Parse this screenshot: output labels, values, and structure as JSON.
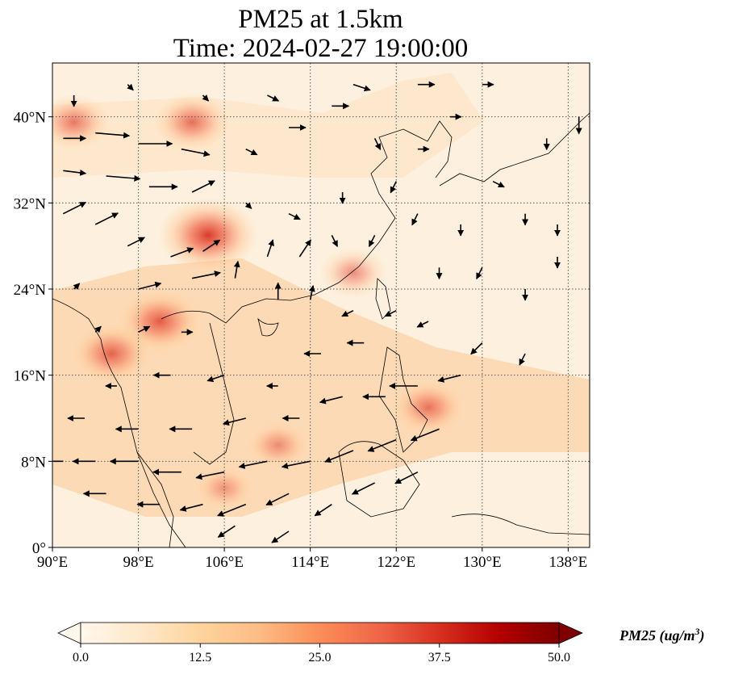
{
  "title": {
    "line1": "PM25 at 1.5km",
    "line2": "Time: 2024-02-27 19:00:00"
  },
  "chart_data": {
    "type": "heatmap",
    "subtype": "map-with-wind-vectors",
    "variable": "PM25",
    "level": "1.5km",
    "time": "2024-02-27 19:00:00",
    "extent": {
      "lon": [
        90,
        140
      ],
      "lat": [
        0,
        45
      ]
    },
    "lon_ticks": [
      "90°E",
      "98°E",
      "106°E",
      "114°E",
      "122°E",
      "130°E",
      "138°E"
    ],
    "lon_tick_values": [
      90,
      98,
      106,
      114,
      122,
      130,
      138
    ],
    "lat_ticks": [
      "0°",
      "8°N",
      "16°N",
      "24°N",
      "32°N",
      "40°N"
    ],
    "lat_tick_values": [
      0,
      8,
      16,
      24,
      32,
      40
    ],
    "gridlines": true,
    "colorbar": {
      "label": "PM25 (ug/m",
      "label_sup": "3",
      "label_end": ")",
      "ticks": [
        "0.0",
        "12.5",
        "25.0",
        "37.5",
        "50.0"
      ],
      "tick_values": [
        0,
        12.5,
        25,
        37.5,
        50
      ],
      "range": [
        0,
        50
      ],
      "extend": "both",
      "colormap": "OrRd",
      "colors": [
        "#fff7ec",
        "#fee8c8",
        "#fdd49e",
        "#fdbb84",
        "#fc8d59",
        "#ef6548",
        "#d7301f",
        "#b30000",
        "#7f0000"
      ]
    },
    "hotspots": [
      {
        "lon": 104.5,
        "lat": 29,
        "value": 40
      },
      {
        "lon": 100,
        "lat": 21,
        "value": 32
      },
      {
        "lon": 95.5,
        "lat": 18,
        "value": 30
      },
      {
        "lon": 103,
        "lat": 39.5,
        "value": 28
      },
      {
        "lon": 92,
        "lat": 39.5,
        "value": 26
      },
      {
        "lon": 125,
        "lat": 13,
        "value": 26
      },
      {
        "lon": 118,
        "lat": 25.5,
        "value": 22
      },
      {
        "lon": 111,
        "lat": 9.5,
        "value": 20
      },
      {
        "lon": 106,
        "lat": 5.5,
        "value": 18
      }
    ],
    "wind_vectors": [
      {
        "lon": 91,
        "lat": 38,
        "u": 4,
        "v": 0
      },
      {
        "lon": 94,
        "lat": 38.5,
        "u": 6,
        "v": -0.5
      },
      {
        "lon": 98,
        "lat": 37.5,
        "u": 6,
        "v": 0
      },
      {
        "lon": 102,
        "lat": 37,
        "u": 5,
        "v": -1
      },
      {
        "lon": 91,
        "lat": 35,
        "u": 4,
        "v": -0.5
      },
      {
        "lon": 95,
        "lat": 34.5,
        "u": 6,
        "v": -0.5
      },
      {
        "lon": 99,
        "lat": 33.5,
        "u": 5,
        "v": 0
      },
      {
        "lon": 103,
        "lat": 33,
        "u": 4,
        "v": 2
      },
      {
        "lon": 91,
        "lat": 31,
        "u": 4,
        "v": 2
      },
      {
        "lon": 94,
        "lat": 30,
        "u": 4,
        "v": 2
      },
      {
        "lon": 97,
        "lat": 28,
        "u": 3,
        "v": 1.5
      },
      {
        "lon": 101,
        "lat": 27,
        "u": 4,
        "v": 1.5
      },
      {
        "lon": 104,
        "lat": 27.5,
        "u": 3,
        "v": 2
      },
      {
        "lon": 103,
        "lat": 25,
        "u": 5,
        "v": 1
      },
      {
        "lon": 98,
        "lat": 24,
        "u": 4,
        "v": 1
      },
      {
        "lon": 107,
        "lat": 25,
        "u": 0.5,
        "v": 3
      },
      {
        "lon": 110,
        "lat": 27,
        "u": 1,
        "v": 3
      },
      {
        "lon": 113,
        "lat": 27,
        "u": 2,
        "v": 3
      },
      {
        "lon": 111,
        "lat": 23,
        "u": 0,
        "v": 3
      },
      {
        "lon": 114,
        "lat": 23,
        "u": 0.5,
        "v": 2.5
      },
      {
        "lon": 108,
        "lat": 37,
        "u": 2,
        "v": -1
      },
      {
        "lon": 112,
        "lat": 39,
        "u": 3,
        "v": 0
      },
      {
        "lon": 116,
        "lat": 41,
        "u": 3,
        "v": 0
      },
      {
        "lon": 120,
        "lat": 38,
        "u": 1,
        "v": -2
      },
      {
        "lon": 122,
        "lat": 34,
        "u": -1,
        "v": -2
      },
      {
        "lon": 117,
        "lat": 33,
        "u": 0,
        "v": -2
      },
      {
        "lon": 124,
        "lat": 37,
        "u": 2,
        "v": 0
      },
      {
        "lon": 127,
        "lat": 40,
        "u": 2,
        "v": 0
      },
      {
        "lon": 131,
        "lat": 34,
        "u": 2,
        "v": -1
      },
      {
        "lon": 134,
        "lat": 31,
        "u": 0,
        "v": -2
      },
      {
        "lon": 137,
        "lat": 30,
        "u": 0,
        "v": -2
      },
      {
        "lon": 139,
        "lat": 40,
        "u": 0,
        "v": -3
      },
      {
        "lon": 137,
        "lat": 27,
        "u": 0,
        "v": -2
      },
      {
        "lon": 134,
        "lat": 24,
        "u": 0,
        "v": -2
      },
      {
        "lon": 130,
        "lat": 26,
        "u": -1,
        "v": -2
      },
      {
        "lon": 126,
        "lat": 26,
        "u": 0,
        "v": -2
      },
      {
        "lon": 125,
        "lat": 21,
        "u": -2,
        "v": -1
      },
      {
        "lon": 130,
        "lat": 19,
        "u": -2,
        "v": -2
      },
      {
        "lon": 134,
        "lat": 18,
        "u": -1,
        "v": -2
      },
      {
        "lon": 128,
        "lat": 16,
        "u": -4,
        "v": -1
      },
      {
        "lon": 124,
        "lat": 15,
        "u": -5,
        "v": 0
      },
      {
        "lon": 121,
        "lat": 14,
        "u": -4,
        "v": 0
      },
      {
        "lon": 117,
        "lat": 14,
        "u": -4,
        "v": -1
      },
      {
        "lon": 126,
        "lat": 11,
        "u": -5,
        "v": -2
      },
      {
        "lon": 122,
        "lat": 10,
        "u": -5,
        "v": -2
      },
      {
        "lon": 118,
        "lat": 9,
        "u": -5,
        "v": -2
      },
      {
        "lon": 114,
        "lat": 8,
        "u": -5,
        "v": -1
      },
      {
        "lon": 110,
        "lat": 8,
        "u": -5,
        "v": -1
      },
      {
        "lon": 106,
        "lat": 7,
        "u": -5,
        "v": -1
      },
      {
        "lon": 102,
        "lat": 7,
        "u": -5,
        "v": 0
      },
      {
        "lon": 98,
        "lat": 8,
        "u": -5,
        "v": 0
      },
      {
        "lon": 94,
        "lat": 8,
        "u": -4,
        "v": 0
      },
      {
        "lon": 91,
        "lat": 8,
        "u": -3,
        "v": 0
      },
      {
        "lon": 95,
        "lat": 5,
        "u": -4,
        "v": 0
      },
      {
        "lon": 100,
        "lat": 4,
        "u": -4,
        "v": 0
      },
      {
        "lon": 104,
        "lat": 4,
        "u": -4,
        "v": -1
      },
      {
        "lon": 108,
        "lat": 4,
        "u": -5,
        "v": -2
      },
      {
        "lon": 112,
        "lat": 5,
        "u": -4,
        "v": -2
      },
      {
        "lon": 116,
        "lat": 4,
        "u": -3,
        "v": -2
      },
      {
        "lon": 120,
        "lat": 6,
        "u": -4,
        "v": -2
      },
      {
        "lon": 124,
        "lat": 7,
        "u": -4,
        "v": -2
      },
      {
        "lon": 107,
        "lat": 2,
        "u": -3,
        "v": -2
      },
      {
        "lon": 112,
        "lat": 1.5,
        "u": -3,
        "v": -2
      },
      {
        "lon": 98,
        "lat": 11,
        "u": -4,
        "v": 0
      },
      {
        "lon": 103,
        "lat": 11,
        "u": -4,
        "v": 0
      },
      {
        "lon": 108,
        "lat": 12,
        "u": -4,
        "v": -1
      },
      {
        "lon": 113,
        "lat": 12,
        "u": -3,
        "v": 0
      },
      {
        "lon": 93,
        "lat": 12,
        "u": -3,
        "v": 0
      },
      {
        "lon": 96,
        "lat": 15,
        "u": -2,
        "v": 0
      },
      {
        "lon": 101,
        "lat": 16,
        "u": -3,
        "v": 0
      },
      {
        "lon": 106,
        "lat": 16,
        "u": -3,
        "v": -1
      },
      {
        "lon": 111,
        "lat": 15,
        "u": -2,
        "v": 0
      },
      {
        "lon": 115,
        "lat": 18,
        "u": -3,
        "v": 0
      },
      {
        "lon": 119,
        "lat": 19,
        "u": -3,
        "v": 0
      },
      {
        "lon": 122,
        "lat": 22,
        "u": -2,
        "v": -1
      },
      {
        "lon": 118,
        "lat": 22,
        "u": -2,
        "v": -1
      },
      {
        "lon": 94,
        "lat": 20,
        "u": 1,
        "v": 1
      },
      {
        "lon": 98,
        "lat": 20,
        "u": 2,
        "v": 1
      },
      {
        "lon": 102,
        "lat": 20,
        "u": 2,
        "v": 0
      },
      {
        "lon": 92,
        "lat": 24,
        "u": 1,
        "v": 1
      },
      {
        "lon": 108,
        "lat": 32,
        "u": 1,
        "v": -1
      },
      {
        "lon": 112,
        "lat": 31,
        "u": 2,
        "v": -1
      },
      {
        "lon": 116,
        "lat": 29,
        "u": 1,
        "v": -2
      },
      {
        "lon": 120,
        "lat": 29,
        "u": -1,
        "v": -2
      },
      {
        "lon": 124,
        "lat": 31,
        "u": -1,
        "v": -2
      },
      {
        "lon": 128,
        "lat": 30,
        "u": 0,
        "v": -2
      },
      {
        "lon": 110,
        "lat": 42,
        "u": 2,
        "v": -1
      },
      {
        "lon": 118,
        "lat": 43,
        "u": 3,
        "v": -1
      },
      {
        "lon": 124,
        "lat": 43,
        "u": 3,
        "v": 0
      },
      {
        "lon": 130,
        "lat": 43,
        "u": 2,
        "v": 0
      },
      {
        "lon": 136,
        "lat": 38,
        "u": 0,
        "v": -2
      },
      {
        "lon": 97,
        "lat": 43,
        "u": 1,
        "v": -1
      },
      {
        "lon": 92,
        "lat": 42,
        "u": 0,
        "v": -2
      },
      {
        "lon": 104,
        "lat": 42,
        "u": 1,
        "v": -1
      }
    ]
  }
}
